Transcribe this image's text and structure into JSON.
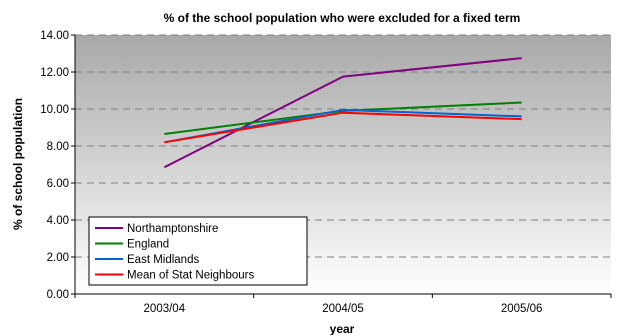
{
  "chart_data": {
    "type": "line",
    "title": "% of the school population who were excluded for a fixed term",
    "xlabel": "year",
    "ylabel": "% of school population",
    "categories": [
      "2003/04",
      "2004/05",
      "2005/06"
    ],
    "ylim": [
      0,
      14
    ],
    "yticks": [
      "0.00",
      "2.00",
      "4.00",
      "6.00",
      "8.00",
      "10.00",
      "12.00",
      "14.00"
    ],
    "grid": true,
    "legend_position": "bottom-left",
    "series": [
      {
        "name": "Northamptonshire",
        "values": [
          6.85,
          11.75,
          12.75
        ],
        "color": "#800080"
      },
      {
        "name": "England",
        "values": [
          8.65,
          9.9,
          10.35
        ],
        "color": "#008000"
      },
      {
        "name": "East Midlands",
        "values": [
          8.2,
          9.95,
          9.6
        ],
        "color": "#0066cc"
      },
      {
        "name": "Mean of Stat Neighbours",
        "values": [
          8.2,
          9.8,
          9.45
        ],
        "color": "#ff0000"
      }
    ]
  }
}
